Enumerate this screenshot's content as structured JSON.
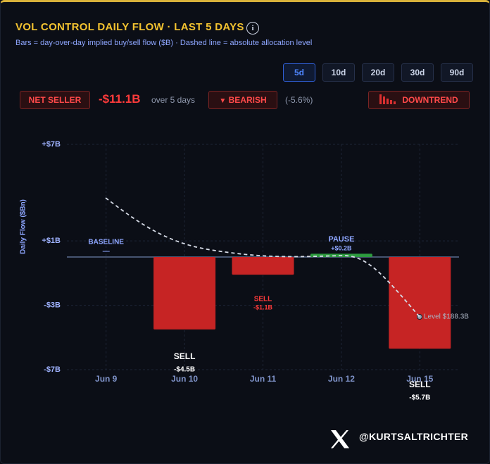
{
  "header": {
    "title": "VOL CONTROL DAILY FLOW · LAST 5 DAYS",
    "info": "i",
    "subtitle": "Bars = day-over-day implied buy/sell flow ($B) · Dashed line = absolute allocation level",
    "ranges": [
      "5d",
      "10d",
      "20d",
      "30d",
      "90d"
    ],
    "active_range": "5d"
  },
  "summary": {
    "stance": "NET SELLER",
    "total": "-$11.1B",
    "period": "over 5 days",
    "sentiment": "BEARISH",
    "change": "(-5.6%)",
    "trend": "DOWNTREND"
  },
  "chart_data": {
    "type": "bar",
    "y_label": "Daily Flow ($Bn)",
    "categories": [
      "Jun 9",
      "Jun 10",
      "Jun 11",
      "Jun 12",
      "Jun 15"
    ],
    "values": [
      null,
      -4.5,
      -1.1,
      0.2,
      -5.7
    ],
    "value_labels": [
      "—",
      "-$4.5B",
      "-$1.1B",
      "+$0.2B",
      "-$5.7B"
    ],
    "signals": [
      "BASELINE",
      "SELL",
      "SELL",
      "PAUSE",
      "SELL"
    ],
    "colors": {
      "negative": "#c62424",
      "positive": "#2d9b3f"
    },
    "ylim": [
      -7,
      7
    ],
    "yticks": [
      {
        "value": 7,
        "label": "+$7B"
      },
      {
        "value": 1,
        "label": "+$1B"
      },
      {
        "value": -3,
        "label": "-$3B"
      },
      {
        "value": -7,
        "label": "-$7B"
      }
    ],
    "grid": true,
    "level_value": 188.3,
    "level_label": "Level $188.3B"
  },
  "footer": {
    "handle": "@KURTSALTRICHTER"
  }
}
